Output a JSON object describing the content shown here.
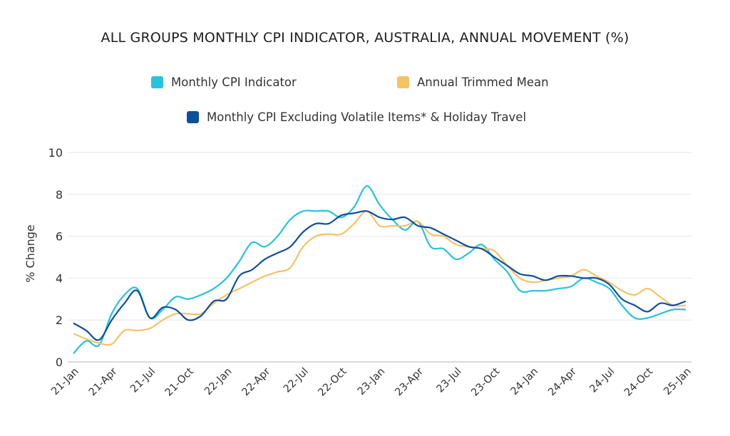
{
  "chart_data": {
    "type": "line",
    "title": "ALL GROUPS MONTHLY CPI INDICATOR, AUSTRALIA, ANNUAL MOVEMENT (%)",
    "xlabel": "",
    "ylabel": "% Change",
    "ylim": [
      0,
      10
    ],
    "yticks": [
      "0",
      "2",
      "4",
      "6",
      "8",
      "10"
    ],
    "grid": true,
    "legend_position": "top",
    "xtick_labels": [
      "21-Jan",
      "21-Apr",
      "21-Jul",
      "21-Oct",
      "22-Jan",
      "22-Apr",
      "22-Jul",
      "22-Oct",
      "23-Jan",
      "23-Apr",
      "23-Jul",
      "23-Oct",
      "24-Jan",
      "24-Apr",
      "24-Jul",
      "24-Oct",
      "25-Jan"
    ],
    "x_period": "monthly, 21-Jan to 25-Jan",
    "series": [
      {
        "name": "Monthly CPI Indicator",
        "color": "#27C3DA",
        "values": [
          0.4,
          1.0,
          0.8,
          2.3,
          3.2,
          3.5,
          2.1,
          2.5,
          3.1,
          3.0,
          3.2,
          3.5,
          4.0,
          4.8,
          5.7,
          5.5,
          6.0,
          6.8,
          7.2,
          7.2,
          7.2,
          6.9,
          7.4,
          8.4,
          7.5,
          6.8,
          6.3,
          6.7,
          5.5,
          5.4,
          4.9,
          5.2,
          5.6,
          4.9,
          4.3,
          3.4,
          3.4,
          3.4,
          3.5,
          3.6,
          4.0,
          3.8,
          3.5,
          2.7,
          2.1,
          2.1,
          2.3,
          2.5,
          2.5
        ]
      },
      {
        "name": "Annual Trimmed Mean",
        "color": "#F5C265",
        "values": [
          1.35,
          1.1,
          0.9,
          0.85,
          1.5,
          1.5,
          1.6,
          2.0,
          2.3,
          2.3,
          2.3,
          2.8,
          3.2,
          3.5,
          3.8,
          4.1,
          4.3,
          4.5,
          5.5,
          6.0,
          6.1,
          6.1,
          6.6,
          7.2,
          6.5,
          6.5,
          6.5,
          6.7,
          6.1,
          6.0,
          5.6,
          5.5,
          5.4,
          5.3,
          4.6,
          4.0,
          3.8,
          3.9,
          4.0,
          4.1,
          4.4,
          4.1,
          3.8,
          3.4,
          3.2,
          3.5,
          3.1,
          2.7,
          2.7
        ]
      },
      {
        "name": "Monthly CPI Excluding Volatile Items* & Holiday Travel",
        "color": "#0D4F9E",
        "values": [
          1.85,
          1.5,
          1.05,
          2.0,
          2.8,
          3.4,
          2.1,
          2.6,
          2.5,
          2.0,
          2.2,
          2.9,
          3.0,
          4.1,
          4.4,
          4.9,
          5.2,
          5.5,
          6.2,
          6.6,
          6.6,
          7.0,
          7.1,
          7.2,
          6.9,
          6.8,
          6.9,
          6.5,
          6.4,
          6.1,
          5.8,
          5.5,
          5.4,
          5.0,
          4.6,
          4.2,
          4.1,
          3.9,
          4.1,
          4.1,
          4.0,
          4.0,
          3.7,
          3.0,
          2.7,
          2.4,
          2.8,
          2.7,
          2.9
        ]
      }
    ]
  }
}
